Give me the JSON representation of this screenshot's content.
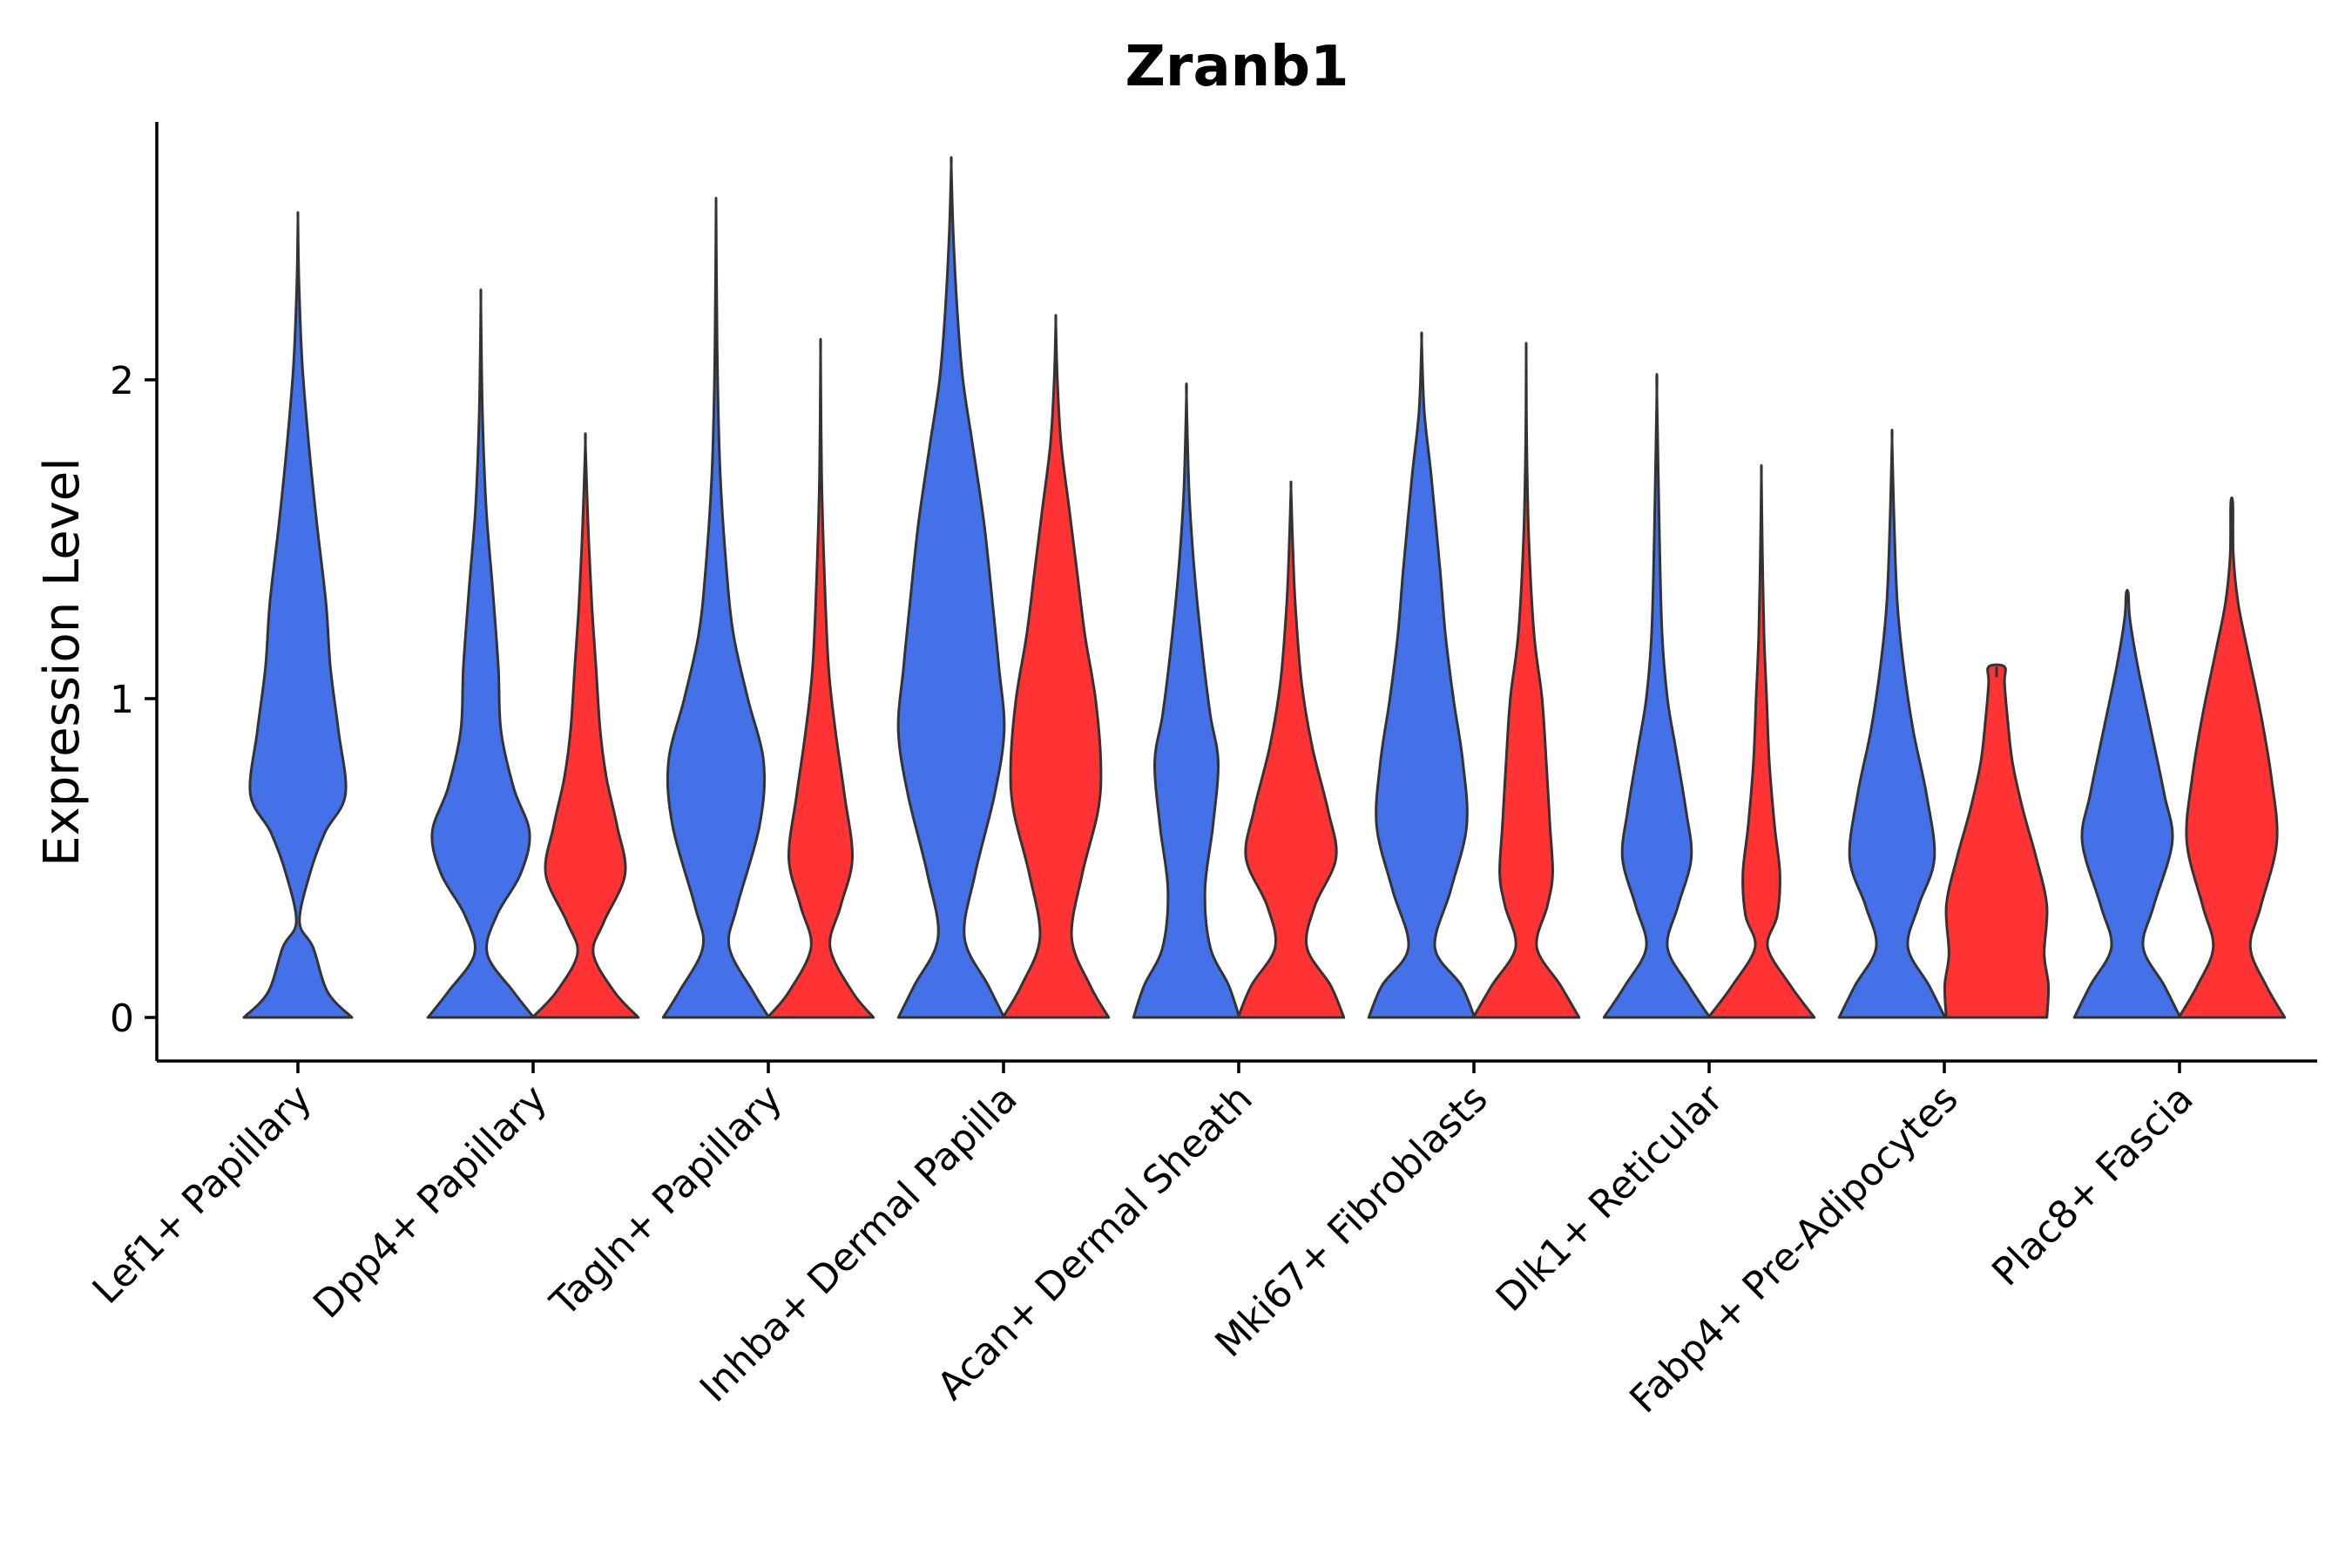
{
  "chart_data": {
    "type": "violin",
    "title": "Zranb1",
    "xlabel": "",
    "ylabel": "Expression Level",
    "ylim": [
      -0.13,
      2.8
    ],
    "yticks": [
      0,
      1,
      2
    ],
    "ytick_labels": [
      "0",
      "1",
      "2"
    ],
    "grid": false,
    "legend": "none",
    "categories": [
      "Lef1+ Papillary",
      "Dpp4+ Papillary",
      "Tagln+ Papillary",
      "Inhba+ Dermal Papilla",
      "Acan+ Dermal Sheath",
      "Mki67+ Fibroblasts",
      "Dlk1+ Reticular",
      "Fabp4+ Pre-Adipocytes",
      "Plac8+ Fascia"
    ],
    "colors": {
      "group_a": "#4470E8",
      "group_b": "#FF3333",
      "outline": "#333333"
    },
    "violins": [
      {
        "category": "Lef1+ Papillary",
        "group": "a",
        "position": "center",
        "max": 2.5,
        "profile": [
          [
            0,
            1
          ],
          [
            0.08,
            0.55
          ],
          [
            0.22,
            0.28
          ],
          [
            0.3,
            0.03
          ],
          [
            0.45,
            0.22
          ],
          [
            0.58,
            0.5
          ],
          [
            0.7,
            0.88
          ],
          [
            0.9,
            0.75
          ],
          [
            1.1,
            0.6
          ],
          [
            1.3,
            0.52
          ],
          [
            1.55,
            0.35
          ],
          [
            1.8,
            0.2
          ],
          [
            2.05,
            0.08
          ],
          [
            2.3,
            0.02
          ],
          [
            2.5,
            0
          ]
        ]
      },
      {
        "category": "Dpp4+ Papillary",
        "group": "a",
        "position": "left",
        "max": 2.24,
        "profile": [
          [
            0,
            1
          ],
          [
            0.08,
            0.62
          ],
          [
            0.2,
            0.12
          ],
          [
            0.32,
            0.3
          ],
          [
            0.45,
            0.75
          ],
          [
            0.58,
            0.92
          ],
          [
            0.72,
            0.62
          ],
          [
            0.9,
            0.38
          ],
          [
            1.1,
            0.33
          ],
          [
            1.35,
            0.22
          ],
          [
            1.6,
            0.1
          ],
          [
            1.9,
            0.03
          ],
          [
            2.24,
            0
          ]
        ]
      },
      {
        "category": "Dpp4+ Papillary",
        "group": "b",
        "position": "right",
        "max": 1.8,
        "profile": [
          [
            0,
            1
          ],
          [
            0.08,
            0.55
          ],
          [
            0.2,
            0.15
          ],
          [
            0.3,
            0.35
          ],
          [
            0.45,
            0.75
          ],
          [
            0.6,
            0.6
          ],
          [
            0.75,
            0.4
          ],
          [
            0.9,
            0.28
          ],
          [
            1.1,
            0.2
          ],
          [
            1.3,
            0.12
          ],
          [
            1.55,
            0.05
          ],
          [
            1.8,
            0
          ]
        ]
      },
      {
        "category": "Tagln+ Papillary",
        "group": "a",
        "position": "left",
        "max": 2.54,
        "profile": [
          [
            0,
            1
          ],
          [
            0.08,
            0.7
          ],
          [
            0.22,
            0.25
          ],
          [
            0.35,
            0.4
          ],
          [
            0.6,
            0.82
          ],
          [
            0.8,
            0.9
          ],
          [
            1.0,
            0.6
          ],
          [
            1.2,
            0.33
          ],
          [
            1.4,
            0.2
          ],
          [
            1.7,
            0.08
          ],
          [
            2.0,
            0.03
          ],
          [
            2.3,
            0.01
          ],
          [
            2.54,
            0
          ]
        ]
      },
      {
        "category": "Tagln+ Papillary",
        "group": "b",
        "position": "right",
        "max": 2.08,
        "profile": [
          [
            0,
            1
          ],
          [
            0.08,
            0.6
          ],
          [
            0.22,
            0.18
          ],
          [
            0.35,
            0.38
          ],
          [
            0.5,
            0.6
          ],
          [
            0.7,
            0.45
          ],
          [
            0.9,
            0.28
          ],
          [
            1.1,
            0.15
          ],
          [
            1.4,
            0.07
          ],
          [
            1.7,
            0.02
          ],
          [
            2.08,
            0
          ]
        ]
      },
      {
        "category": "Inhba+ Dermal Papilla",
        "group": "a",
        "position": "left",
        "max": 2.67,
        "profile": [
          [
            0,
            1
          ],
          [
            0.1,
            0.7
          ],
          [
            0.25,
            0.25
          ],
          [
            0.45,
            0.45
          ],
          [
            0.7,
            0.82
          ],
          [
            0.9,
            1.0
          ],
          [
            1.1,
            0.9
          ],
          [
            1.3,
            0.78
          ],
          [
            1.55,
            0.62
          ],
          [
            1.8,
            0.4
          ],
          [
            2.0,
            0.22
          ],
          [
            2.2,
            0.12
          ],
          [
            2.45,
            0.04
          ],
          [
            2.67,
            0
          ]
        ]
      },
      {
        "category": "Inhba+ Dermal Papilla",
        "group": "b",
        "position": "right",
        "max": 2.18,
        "profile": [
          [
            0,
            1
          ],
          [
            0.1,
            0.65
          ],
          [
            0.25,
            0.3
          ],
          [
            0.45,
            0.5
          ],
          [
            0.65,
            0.8
          ],
          [
            0.8,
            0.85
          ],
          [
            1.0,
            0.75
          ],
          [
            1.2,
            0.55
          ],
          [
            1.4,
            0.4
          ],
          [
            1.6,
            0.25
          ],
          [
            1.8,
            0.1
          ],
          [
            2.0,
            0.03
          ],
          [
            2.18,
            0
          ]
        ]
      },
      {
        "category": "Acan+ Dermal Sheath",
        "group": "a",
        "position": "left",
        "max": 1.95,
        "profile": [
          [
            0,
            1
          ],
          [
            0.1,
            0.8
          ],
          [
            0.22,
            0.45
          ],
          [
            0.4,
            0.35
          ],
          [
            0.6,
            0.5
          ],
          [
            0.8,
            0.6
          ],
          [
            0.95,
            0.45
          ],
          [
            1.15,
            0.3
          ],
          [
            1.4,
            0.15
          ],
          [
            1.65,
            0.05
          ],
          [
            1.95,
            0
          ]
        ]
      },
      {
        "category": "Acan+ Dermal Sheath",
        "group": "b",
        "position": "right",
        "max": 1.66,
        "profile": [
          [
            0,
            1
          ],
          [
            0.1,
            0.75
          ],
          [
            0.22,
            0.3
          ],
          [
            0.35,
            0.45
          ],
          [
            0.5,
            0.85
          ],
          [
            0.65,
            0.7
          ],
          [
            0.85,
            0.4
          ],
          [
            1.05,
            0.2
          ],
          [
            1.3,
            0.08
          ],
          [
            1.5,
            0.03
          ],
          [
            1.66,
            0
          ]
        ]
      },
      {
        "category": "Mki67+ Fibroblasts",
        "group": "a",
        "position": "left",
        "max": 2.12,
        "profile": [
          [
            0,
            1
          ],
          [
            0.1,
            0.75
          ],
          [
            0.22,
            0.25
          ],
          [
            0.4,
            0.55
          ],
          [
            0.6,
            0.85
          ],
          [
            0.8,
            0.78
          ],
          [
            1.0,
            0.6
          ],
          [
            1.2,
            0.45
          ],
          [
            1.4,
            0.35
          ],
          [
            1.7,
            0.18
          ],
          [
            1.9,
            0.05
          ],
          [
            2.12,
            0
          ]
        ]
      },
      {
        "category": "Mki67+ Fibroblasts",
        "group": "b",
        "position": "right",
        "max": 2.08,
        "profile": [
          [
            0,
            1
          ],
          [
            0.1,
            0.65
          ],
          [
            0.22,
            0.2
          ],
          [
            0.35,
            0.4
          ],
          [
            0.45,
            0.5
          ],
          [
            0.6,
            0.45
          ],
          [
            0.8,
            0.38
          ],
          [
            1.0,
            0.3
          ],
          [
            1.2,
            0.15
          ],
          [
            1.5,
            0.05
          ],
          [
            1.8,
            0.01
          ],
          [
            2.08,
            0
          ]
        ]
      },
      {
        "category": "Dlk1+ Reticular",
        "group": "a",
        "position": "left",
        "max": 1.96,
        "profile": [
          [
            0,
            1
          ],
          [
            0.1,
            0.6
          ],
          [
            0.22,
            0.2
          ],
          [
            0.35,
            0.4
          ],
          [
            0.5,
            0.65
          ],
          [
            0.65,
            0.55
          ],
          [
            0.85,
            0.35
          ],
          [
            1.0,
            0.2
          ],
          [
            1.2,
            0.1
          ],
          [
            1.5,
            0.05
          ],
          [
            1.96,
            0
          ]
        ]
      },
      {
        "category": "Dlk1+ Reticular",
        "group": "b",
        "position": "right",
        "max": 1.7,
        "profile": [
          [
            0,
            1
          ],
          [
            0.1,
            0.55
          ],
          [
            0.22,
            0.12
          ],
          [
            0.32,
            0.3
          ],
          [
            0.45,
            0.35
          ],
          [
            0.6,
            0.25
          ],
          [
            0.8,
            0.15
          ],
          [
            1.0,
            0.1
          ],
          [
            1.2,
            0.05
          ],
          [
            1.45,
            0.02
          ],
          [
            1.7,
            0
          ]
        ]
      },
      {
        "category": "Fabp4+ Pre-Adipocytes",
        "group": "a",
        "position": "left",
        "max": 1.81,
        "profile": [
          [
            0,
            1
          ],
          [
            0.1,
            0.7
          ],
          [
            0.22,
            0.3
          ],
          [
            0.35,
            0.5
          ],
          [
            0.5,
            0.8
          ],
          [
            0.7,
            0.65
          ],
          [
            0.9,
            0.4
          ],
          [
            1.1,
            0.22
          ],
          [
            1.3,
            0.1
          ],
          [
            1.55,
            0.04
          ],
          [
            1.81,
            0
          ]
        ]
      },
      {
        "category": "Fabp4+ Pre-Adipocytes",
        "group": "b",
        "position": "right",
        "max": 1.1,
        "profile": [
          [
            0,
            0.95
          ],
          [
            0.1,
            0.98
          ],
          [
            0.2,
            0.9
          ],
          [
            0.35,
            0.95
          ],
          [
            0.5,
            0.75
          ],
          [
            0.65,
            0.5
          ],
          [
            0.8,
            0.3
          ],
          [
            0.95,
            0.2
          ],
          [
            1.05,
            0.15
          ],
          [
            1.1,
            0.15
          ]
        ]
      },
      {
        "category": "Plac8+ Fascia",
        "group": "a",
        "position": "left",
        "max": 1.33,
        "profile": [
          [
            0,
            1
          ],
          [
            0.1,
            0.7
          ],
          [
            0.22,
            0.3
          ],
          [
            0.35,
            0.5
          ],
          [
            0.55,
            0.85
          ],
          [
            0.7,
            0.7
          ],
          [
            0.9,
            0.45
          ],
          [
            1.1,
            0.2
          ],
          [
            1.25,
            0.05
          ],
          [
            1.33,
            0.02
          ]
        ]
      },
      {
        "category": "Plac8+ Fascia",
        "group": "b",
        "position": "right",
        "max": 1.61,
        "profile": [
          [
            0,
            1
          ],
          [
            0.1,
            0.65
          ],
          [
            0.22,
            0.35
          ],
          [
            0.35,
            0.55
          ],
          [
            0.55,
            0.85
          ],
          [
            0.75,
            0.75
          ],
          [
            0.95,
            0.55
          ],
          [
            1.15,
            0.3
          ],
          [
            1.3,
            0.12
          ],
          [
            1.45,
            0.03
          ],
          [
            1.61,
            0.02
          ]
        ]
      }
    ]
  }
}
